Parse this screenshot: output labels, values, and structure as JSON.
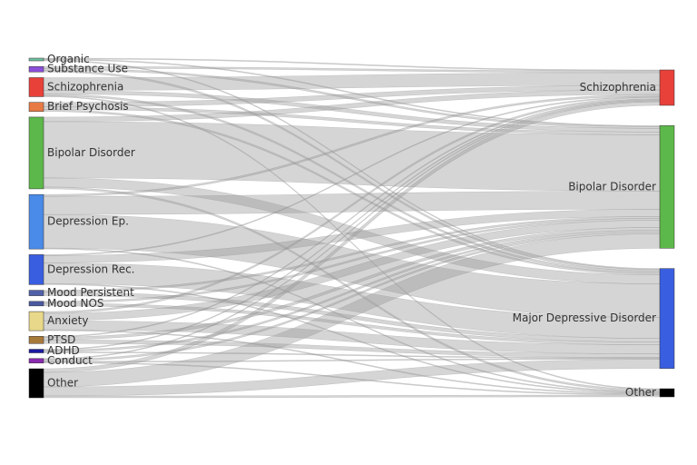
{
  "chart_data": {
    "type": "sankey",
    "sources": [
      {
        "name": "Organic",
        "color": "#6fc0a0"
      },
      {
        "name": "Substance Use",
        "color": "#8a4fd8"
      },
      {
        "name": "Schizophrenia",
        "color": "#e8413a"
      },
      {
        "name": "Brief Psychosis",
        "color": "#e87a45"
      },
      {
        "name": "Bipolar Disorder",
        "color": "#5cb84a"
      },
      {
        "name": "Depression Ep.",
        "color": "#4a8ae8"
      },
      {
        "name": "Depression Rec.",
        "color": "#3a5ee0"
      },
      {
        "name": "Mood Persistent",
        "color": "#5060a8"
      },
      {
        "name": "Mood NOS",
        "color": "#4a5aa0"
      },
      {
        "name": "Anxiety",
        "color": "#e8d88a"
      },
      {
        "name": "PTSD",
        "color": "#a87a3a"
      },
      {
        "name": "ADHD",
        "color": "#1a1aa0"
      },
      {
        "name": "Conduct",
        "color": "#8a2ab0"
      },
      {
        "name": "Other",
        "color": "#000000"
      }
    ],
    "targets": [
      {
        "name": "Schizophrenia",
        "color": "#e8413a"
      },
      {
        "name": "Bipolar Disorder",
        "color": "#5cb84a"
      },
      {
        "name": "Major Depressive Disorder",
        "color": "#3a5ee0"
      },
      {
        "name": "Other",
        "color": "#000000"
      }
    ],
    "link_color": "#9a9a9a",
    "links": [
      {
        "source": 0,
        "target": 0,
        "value": 1
      },
      {
        "source": 0,
        "target": 1,
        "value": 1
      },
      {
        "source": 0,
        "target": 2,
        "value": 1
      },
      {
        "source": 1,
        "target": 0,
        "value": 2
      },
      {
        "source": 1,
        "target": 1,
        "value": 2
      },
      {
        "source": 1,
        "target": 2,
        "value": 2
      },
      {
        "source": 2,
        "target": 0,
        "value": 14
      },
      {
        "source": 2,
        "target": 1,
        "value": 4
      },
      {
        "source": 2,
        "target": 2,
        "value": 2
      },
      {
        "source": 2,
        "target": 3,
        "value": 1
      },
      {
        "source": 3,
        "target": 0,
        "value": 5
      },
      {
        "source": 3,
        "target": 1,
        "value": 3
      },
      {
        "source": 3,
        "target": 2,
        "value": 2
      },
      {
        "source": 4,
        "target": 0,
        "value": 5
      },
      {
        "source": 4,
        "target": 1,
        "value": 62
      },
      {
        "source": 4,
        "target": 2,
        "value": 10
      },
      {
        "source": 4,
        "target": 3,
        "value": 2
      },
      {
        "source": 5,
        "target": 0,
        "value": 2
      },
      {
        "source": 5,
        "target": 1,
        "value": 20
      },
      {
        "source": 5,
        "target": 2,
        "value": 37
      },
      {
        "source": 5,
        "target": 3,
        "value": 1
      },
      {
        "source": 6,
        "target": 0,
        "value": 1
      },
      {
        "source": 6,
        "target": 1,
        "value": 8
      },
      {
        "source": 6,
        "target": 2,
        "value": 23
      },
      {
        "source": 6,
        "target": 3,
        "value": 1
      },
      {
        "source": 7,
        "target": 1,
        "value": 2
      },
      {
        "source": 7,
        "target": 2,
        "value": 4
      },
      {
        "source": 8,
        "target": 1,
        "value": 2
      },
      {
        "source": 8,
        "target": 2,
        "value": 3
      },
      {
        "source": 9,
        "target": 0,
        "value": 2
      },
      {
        "source": 9,
        "target": 1,
        "value": 8
      },
      {
        "source": 9,
        "target": 2,
        "value": 10
      },
      {
        "source": 9,
        "target": 3,
        "value": 1
      },
      {
        "source": 10,
        "target": 0,
        "value": 1
      },
      {
        "source": 10,
        "target": 1,
        "value": 3
      },
      {
        "source": 10,
        "target": 2,
        "value": 4
      },
      {
        "source": 11,
        "target": 0,
        "value": 1
      },
      {
        "source": 11,
        "target": 1,
        "value": 2
      },
      {
        "source": 11,
        "target": 2,
        "value": 1
      },
      {
        "source": 12,
        "target": 0,
        "value": 1
      },
      {
        "source": 12,
        "target": 1,
        "value": 2
      },
      {
        "source": 12,
        "target": 2,
        "value": 1
      },
      {
        "source": 12,
        "target": 3,
        "value": 1
      },
      {
        "source": 13,
        "target": 0,
        "value": 4
      },
      {
        "source": 13,
        "target": 1,
        "value": 16
      },
      {
        "source": 13,
        "target": 2,
        "value": 10
      },
      {
        "source": 13,
        "target": 3,
        "value": 2
      }
    ]
  }
}
